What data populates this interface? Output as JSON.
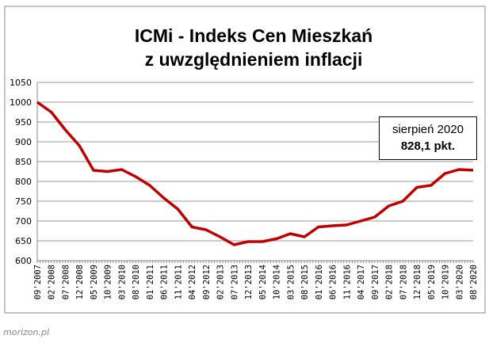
{
  "chart_data": {
    "type": "line",
    "title": [
      "ICMi - Indeks Cen Mieszkań",
      "z uwzględnieniem inflacji"
    ],
    "xlabel": "",
    "ylabel": "",
    "ylim": [
      600,
      1050
    ],
    "yticks": [
      600,
      650,
      700,
      750,
      800,
      850,
      900,
      950,
      1000,
      1050
    ],
    "grid": true,
    "legend": "none",
    "line_color": "#c00000",
    "categories": [
      "09'2007",
      "02'2008",
      "07'2008",
      "12'2008",
      "05'2009",
      "10'2009",
      "03'2010",
      "08'2010",
      "01'2011",
      "06'2011",
      "11'2011",
      "04'2012",
      "09'2012",
      "02'2013",
      "07'2013",
      "12'2013",
      "05'2014",
      "10'2014",
      "03'2015",
      "08'2015",
      "01'2016",
      "06'2016",
      "11'2016",
      "04'2017",
      "09'2017",
      "02'2018",
      "07'2018",
      "12'2018",
      "05'2019",
      "10'2019",
      "03'2020",
      "08'2020"
    ],
    "series": [
      {
        "values": [
          1000,
          975,
          930,
          890,
          828,
          825,
          830,
          812,
          790,
          758,
          730,
          685,
          678,
          660,
          640,
          648,
          648,
          655,
          668,
          660,
          685,
          688,
          690,
          700,
          710,
          738,
          750,
          785,
          790,
          820,
          830,
          828.1
        ]
      }
    ],
    "annotation": {
      "line1": "sierpień 2020",
      "line2": "828,1 pkt."
    }
  },
  "source": "morizon.pl"
}
